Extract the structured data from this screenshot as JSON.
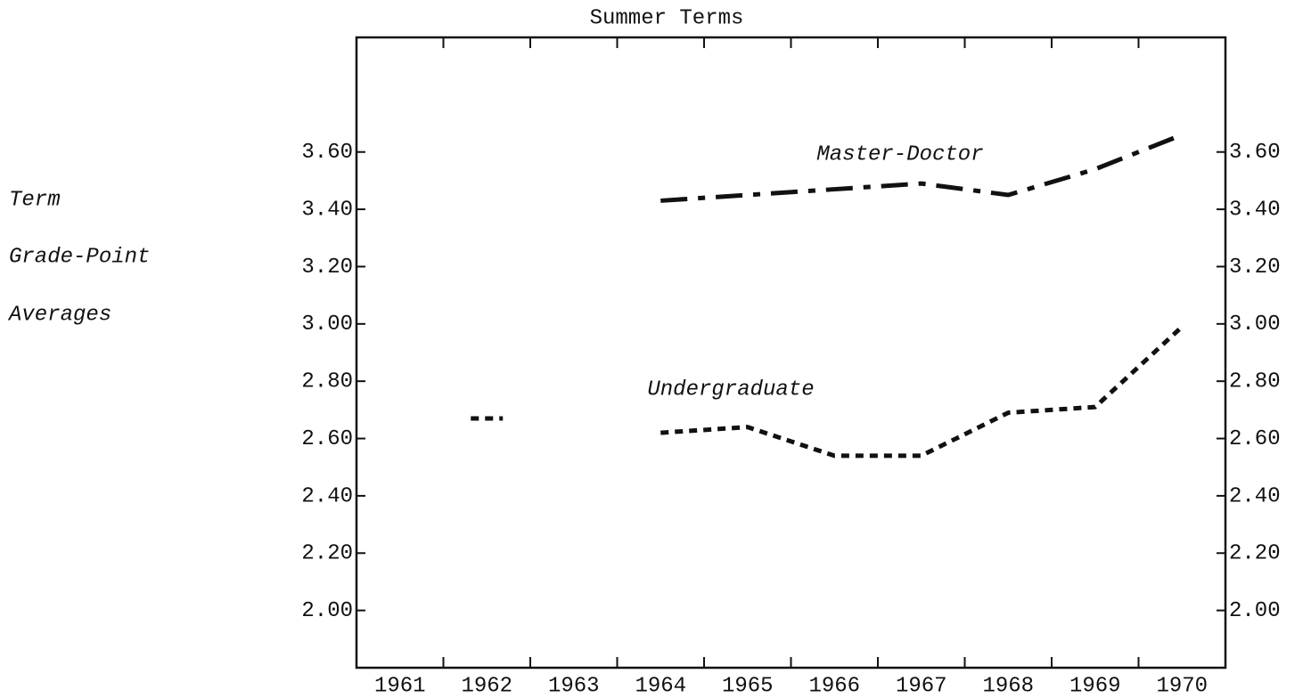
{
  "chart_data": {
    "type": "line",
    "title": "Summer Terms",
    "ylabel": [
      "Term",
      "Grade-Point",
      "Averages"
    ],
    "categories": [
      "1961",
      "1962",
      "1963",
      "1964",
      "1965",
      "1966",
      "1967",
      "1968",
      "1969",
      "1970"
    ],
    "series": [
      {
        "name": "Master-Doctor",
        "color": "#111111",
        "style": "dashdot",
        "values": [
          null,
          null,
          null,
          3.43,
          3.45,
          3.47,
          3.49,
          3.45,
          3.54,
          3.66
        ]
      },
      {
        "name": "Undergraduate",
        "color": "#111111",
        "style": "dotted",
        "values": [
          null,
          2.67,
          null,
          2.62,
          2.64,
          2.54,
          2.54,
          2.69,
          2.71,
          2.99
        ]
      }
    ],
    "ylim": [
      1.8,
      4.0
    ],
    "yticks": [
      {
        "value": 2.0,
        "label": "2.00"
      },
      {
        "value": 2.2,
        "label": "2.20"
      },
      {
        "value": 2.4,
        "label": "2.40"
      },
      {
        "value": 2.6,
        "label": "2.60"
      },
      {
        "value": 2.8,
        "label": "2.80"
      },
      {
        "value": 3.0,
        "label": "3.00"
      },
      {
        "value": 3.2,
        "label": "3.20"
      },
      {
        "value": 3.4,
        "label": "3.40"
      },
      {
        "value": 3.6,
        "label": "3.60"
      }
    ],
    "grid": false
  }
}
